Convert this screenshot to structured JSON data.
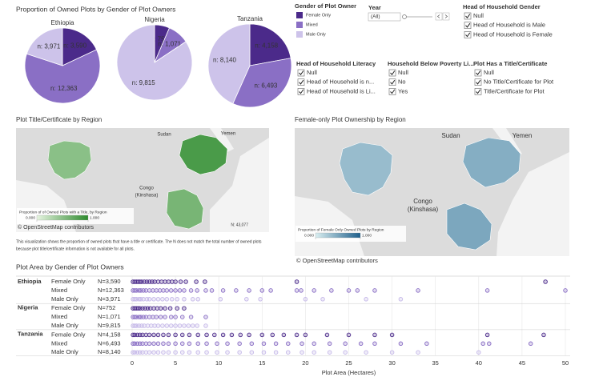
{
  "chart_data": [
    {
      "type": "pie",
      "title": "Proportion of Owned Plots by Gender of Plot Owners",
      "subtitle": "Ethiopia",
      "categories": [
        "Female Only",
        "Mixed",
        "Male Only"
      ],
      "values": [
        3590,
        12363,
        3971
      ],
      "value_labels": [
        "n: 3,590",
        "n: 12,363",
        "n: 3,971"
      ],
      "colors": [
        "#4b2a8a",
        "#8a6fc5",
        "#cdc3ea"
      ]
    },
    {
      "type": "pie",
      "subtitle": "Nigeria",
      "categories": [
        "Female Only",
        "Mixed",
        "Male Only"
      ],
      "values": [
        752,
        1071,
        9815
      ],
      "value_labels": [
        "n: 752",
        "n: 1,071",
        "n: 9,815"
      ],
      "colors": [
        "#4b2a8a",
        "#8a6fc5",
        "#cdc3ea"
      ]
    },
    {
      "type": "pie",
      "subtitle": "Tanzania",
      "categories": [
        "Female Only",
        "Mixed",
        "Male Only"
      ],
      "values": [
        4158,
        6493,
        8140
      ],
      "value_labels": [
        "n: 4,158",
        "n: 6,493",
        "n: 8,140"
      ],
      "colors": [
        "#4b2a8a",
        "#8a6fc5",
        "#cdc3ea"
      ]
    },
    {
      "type": "map",
      "title": "Plot Title/Certificate by Region",
      "legend_title": "Proportion of of Owned Plots with a Title, by Region",
      "legend_ticks": [
        {
          "value": 0,
          "label": "0.000"
        },
        {
          "value": 1,
          "label": "1.000"
        }
      ],
      "colors": [
        "#e6f4e0",
        "#2e8b2e"
      ],
      "place_labels": [
        "Sudan",
        "Yemen",
        "Congo",
        "(Kinshasa)"
      ],
      "attribution": "© OpenStreetMap contributors",
      "note": "N: 43,077",
      "caption": [
        "This visualization shows the proportion of owned plots that have a title or certificate. The N does not match the total number of owned plots",
        "because plot title/certificate information is not available for all plots."
      ]
    },
    {
      "type": "map",
      "title": "Female-only Plot Ownership by Region",
      "legend_title": "Proportion of Female Only Owned Plots by Region",
      "legend_ticks": [
        {
          "value": 0,
          "label": "0.000"
        },
        {
          "value": 1,
          "label": "1.000"
        }
      ],
      "colors": [
        "#d9eef0",
        "#1f5f8b"
      ],
      "place_labels": [
        "Sudan",
        "Yemen",
        "Congo",
        "(Kinshasa)"
      ],
      "attribution": "© OpenStreetMap contributors"
    },
    {
      "type": "strip",
      "title": "Plot Area by Gender of Plot Owners",
      "xlabel": "Plot Area (Hectares)",
      "xlim": [
        0,
        50
      ],
      "xticks": [
        0,
        5,
        10,
        15,
        20,
        25,
        30,
        35,
        40,
        45,
        50
      ],
      "groups": [
        {
          "name": "Ethiopia",
          "rows": [
            {
              "name": "Female Only",
              "label": "N=3,590",
              "color": "#4b2a8a",
              "x": [
                0.1,
                0.3,
                0.5,
                0.7,
                0.9,
                1.1,
                1.4,
                1.7,
                2,
                2.3,
                2.6,
                3,
                3.4,
                3.8,
                4.2,
                4.6,
                5,
                5.6,
                6.2,
                7.4,
                8.4,
                19,
                47.7
              ]
            },
            {
              "name": "Mixed",
              "label": "N=12,363",
              "color": "#8a6fc5",
              "x": [
                0.1,
                0.3,
                0.5,
                0.8,
                1,
                1.3,
                1.6,
                2,
                2.4,
                2.8,
                3.2,
                3.6,
                4,
                4.5,
                5,
                5.5,
                6,
                6.8,
                7.5,
                8.5,
                9.2,
                10.5,
                12,
                13.5,
                15,
                16,
                19,
                19.5,
                21,
                23,
                25,
                26,
                28,
                33,
                41,
                50
              ]
            },
            {
              "name": "Male Only",
              "label": "N=3,971",
              "color": "#c5b8e8",
              "x": [
                0.1,
                0.3,
                0.5,
                0.8,
                1,
                1.3,
                1.7,
                2,
                2.5,
                3,
                3.5,
                4,
                4.6,
                5.2,
                6,
                7,
                7.6,
                10.2,
                13.2,
                14.8,
                20,
                22,
                27,
                31
              ]
            }
          ]
        },
        {
          "name": "Nigeria",
          "rows": [
            {
              "name": "Female Only",
              "label": "N=752",
              "color": "#4b2a8a",
              "x": [
                0.1,
                0.3,
                0.5,
                0.7,
                0.9,
                1.2,
                1.5,
                1.8,
                2.1,
                2.5,
                2.9,
                3.3,
                3.8,
                4.4,
                5.2,
                6
              ]
            },
            {
              "name": "Mixed",
              "label": "N=1,071",
              "color": "#8a6fc5",
              "x": [
                0.1,
                0.3,
                0.5,
                0.8,
                1,
                1.3,
                1.6,
                2,
                2.4,
                2.8,
                3.3,
                3.8,
                4.5,
                5,
                5.8,
                6.8,
                8.5
              ]
            },
            {
              "name": "Male Only",
              "label": "N=9,815",
              "color": "#c5b8e8",
              "x": [
                0.1,
                0.3,
                0.5,
                0.8,
                1.1,
                1.4,
                1.8,
                2.2,
                2.6,
                3,
                3.5,
                4,
                4.5,
                5,
                5.5,
                6,
                6.5,
                7,
                7.5,
                8.5
              ]
            }
          ]
        },
        {
          "name": "Tanzania",
          "rows": [
            {
              "name": "Female Only",
              "label": "N=4,158",
              "color": "#4b2a8a",
              "x": [
                0.1,
                0.3,
                0.6,
                0.9,
                1.2,
                1.6,
                2,
                2.5,
                3,
                3.6,
                4.2,
                5,
                5.8,
                6.6,
                7.6,
                8.6,
                9.5,
                10.5,
                11.5,
                12.5,
                13.5,
                15,
                16.2,
                17.5,
                19,
                20,
                22.5,
                25,
                28,
                30,
                41,
                47.5
              ]
            },
            {
              "name": "Mixed",
              "label": "N=6,493",
              "color": "#8a6fc5",
              "x": [
                0.1,
                0.3,
                0.6,
                0.9,
                1.2,
                1.6,
                2,
                2.5,
                3,
                3.6,
                4.2,
                5,
                5.8,
                6.6,
                7.6,
                8.6,
                9.8,
                11,
                12.4,
                13.8,
                15.2,
                16.6,
                18,
                19.6,
                21,
                22.8,
                24.6,
                26.4,
                28,
                31,
                34,
                40.5,
                41.2,
                46
              ]
            },
            {
              "name": "Male Only",
              "label": "N=8,140",
              "color": "#c5b8e8",
              "x": [
                0.1,
                0.3,
                0.6,
                0.9,
                1.2,
                1.6,
                2,
                2.5,
                3,
                3.6,
                4.2,
                5,
                5.8,
                6.6,
                7.6,
                8.6,
                9.8,
                11,
                12.4,
                13.8,
                15.2,
                16.6,
                18,
                19.6,
                21,
                22.8,
                24.6,
                27,
                30,
                33,
                40
              ]
            }
          ]
        }
      ]
    }
  ],
  "filters": {
    "legend_title": "Gender of Plot Owner",
    "year": {
      "title": "Year",
      "value": "(All)"
    },
    "groups": [
      {
        "title": "Head of Household Gender",
        "options": [
          "Null",
          "Head of Household is Male",
          "Head of Household is Female"
        ]
      },
      {
        "title": "Head of Household Literacy",
        "options": [
          "Null",
          "Head of Household is n...",
          "Head of Household is Li..."
        ]
      },
      {
        "title": "Household Below Poverty Li...",
        "options": [
          "Null",
          "No",
          "Yes"
        ]
      },
      {
        "title": "Plot Has a Title/Certificate",
        "options": [
          "Null",
          "No Title/Certificate for Plot",
          "Title/Certificate for Plot"
        ]
      }
    ]
  }
}
